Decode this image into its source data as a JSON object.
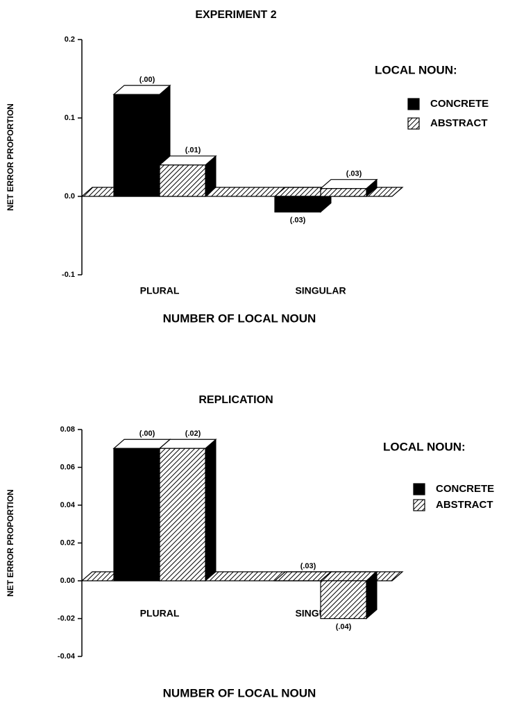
{
  "chart_data": [
    {
      "type": "bar3d",
      "title": "EXPERIMENT 2",
      "y_label": "NET ERROR PROPORTION",
      "x_label": "NUMBER OF LOCAL NOUN",
      "legend_title": "LOCAL NOUN:",
      "categories": [
        "PLURAL",
        "SINGULAR"
      ],
      "series": [
        {
          "name": "CONCRETE",
          "color": "#000000",
          "pattern": "solid",
          "values": [
            0.13,
            -0.02
          ],
          "error_labels": [
            "(.00)",
            "(.03)"
          ]
        },
        {
          "name": "ABSTRACT",
          "color": "#000000",
          "pattern": "hatch",
          "values": [
            0.04,
            0.01
          ],
          "error_labels": [
            "(.01)",
            "(.03)"
          ]
        }
      ],
      "ylim": [
        -0.1,
        0.2
      ],
      "yticks": [
        -0.1,
        {
          "value": 0,
          "label": "0.0"
        },
        0.1,
        0.2
      ]
    },
    {
      "type": "bar3d",
      "title": "REPLICATION",
      "y_label": "NET ERROR PROPORTION",
      "x_label": "NUMBER OF LOCAL NOUN",
      "legend_title": "LOCAL NOUN:",
      "categories": [
        "PLURAL",
        "SINGULAR"
      ],
      "series": [
        {
          "name": "CONCRETE",
          "color": "#000000",
          "pattern": "solid",
          "values": [
            0.07,
            0
          ],
          "error_labels": [
            "(.00)",
            "(.03)"
          ]
        },
        {
          "name": "ABSTRACT",
          "color": "#000000",
          "pattern": "hatch",
          "values": [
            0.07,
            -0.02
          ],
          "error_labels": [
            "(.02)",
            "(.04)"
          ]
        }
      ],
      "ylim": [
        -0.04,
        0.08
      ],
      "yticks": [
        -0.04,
        -0.02,
        {
          "value": 0,
          "label": "0.00"
        },
        0.02,
        0.04,
        0.06,
        0.08
      ]
    }
  ]
}
